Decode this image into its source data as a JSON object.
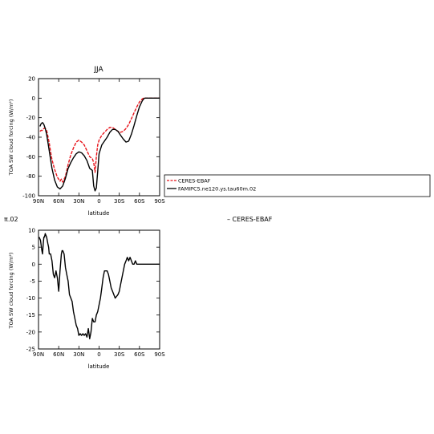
{
  "chart_data": [
    {
      "type": "line",
      "title": "JJA",
      "xlabel": "latitude",
      "ylabel": "TOA SW cloud forcing (W/m²)",
      "xticks": [
        "90N",
        "60N",
        "30N",
        "0",
        "30S",
        "60S",
        "90S"
      ],
      "xticks_values": [
        90,
        60,
        30,
        0,
        -30,
        -60,
        -90
      ],
      "yticks": [
        "20",
        "0",
        "-20",
        "-40",
        "-60",
        "-80",
        "-100"
      ],
      "xlim": [
        90,
        -90
      ],
      "ylim": [
        -100,
        20
      ],
      "grid": false,
      "legend_position": "right",
      "series": [
        {
          "name": "CERES-EBAF",
          "color": "#e8141b",
          "style": "dashed",
          "x": [
            88,
            86,
            84,
            82,
            80,
            78,
            76,
            74,
            72,
            70,
            66,
            62,
            58,
            56,
            54,
            50,
            46,
            42,
            38,
            34,
            30,
            26,
            22,
            18,
            14,
            10,
            8,
            6,
            4,
            2,
            0,
            -4,
            -8,
            -12,
            -16,
            -20,
            -24,
            -28,
            -32,
            -36,
            -40,
            -44,
            -48,
            -52,
            -56,
            -60,
            -64,
            -66,
            -68,
            -70,
            -72,
            -76,
            -80,
            -84,
            -88,
            -90
          ],
          "y": [
            -34,
            -33,
            -33,
            -31,
            -31,
            -33,
            -39,
            -46,
            -55,
            -63,
            -73,
            -81,
            -85,
            -83,
            -86,
            -80,
            -68,
            -58,
            -51,
            -45,
            -43,
            -45,
            -48,
            -54,
            -60,
            -62,
            -66,
            -76,
            -60,
            -48,
            -43,
            -38,
            -35,
            -32,
            -30,
            -30,
            -32,
            -34,
            -35,
            -34,
            -31,
            -27,
            -21,
            -15,
            -9,
            -4,
            -1,
            0,
            0,
            0,
            0,
            0,
            0,
            0,
            0,
            0
          ]
        },
        {
          "name": "FAMIPC5.ne120.ys.tau60m.02",
          "color": "#000000",
          "style": "solid",
          "x": [
            88,
            86,
            84,
            82,
            80,
            78,
            76,
            74,
            72,
            70,
            66,
            62,
            58,
            54,
            50,
            46,
            42,
            38,
            34,
            30,
            26,
            22,
            18,
            14,
            10,
            8,
            6,
            4,
            2,
            0,
            -4,
            -8,
            -12,
            -16,
            -20,
            -24,
            -28,
            -32,
            -36,
            -40,
            -44,
            -48,
            -52,
            -56,
            -60,
            -64,
            -66,
            -68,
            -70,
            -72,
            -76,
            -80,
            -84,
            -88,
            -90
          ],
          "y": [
            -29,
            -26,
            -25,
            -27,
            -31,
            -37,
            -45,
            -54,
            -63,
            -72,
            -84,
            -91,
            -93,
            -90,
            -82,
            -72,
            -66,
            -61,
            -57,
            -55,
            -56,
            -59,
            -64,
            -72,
            -74,
            -90,
            -95,
            -92,
            -75,
            -57,
            -48,
            -44,
            -40,
            -35,
            -32,
            -32,
            -34,
            -38,
            -42,
            -45,
            -44,
            -37,
            -28,
            -18,
            -9,
            -3,
            -1,
            0,
            0,
            0,
            0,
            0,
            0,
            0,
            0
          ]
        }
      ]
    },
    {
      "type": "line",
      "title": "",
      "corner_label": "π.02",
      "top_right_label": "– CERES-EBAF",
      "xlabel": "latitude",
      "ylabel": "TOA SW cloud forcing (W/m²)",
      "xticks": [
        "90N",
        "60N",
        "30N",
        "0",
        "30S",
        "60S",
        "90S"
      ],
      "xticks_values": [
        90,
        60,
        30,
        0,
        -30,
        -60,
        -90
      ],
      "yticks": [
        "10",
        "5",
        "0",
        "-5",
        "-10",
        "-15",
        "-20",
        "-25"
      ],
      "xlim": [
        90,
        -90
      ],
      "ylim": [
        -25,
        10
      ],
      "grid": false,
      "series": [
        {
          "color": "#000000",
          "style": "solid",
          "x": [
            89,
            87,
            85,
            84,
            83,
            82,
            81,
            80,
            78,
            76,
            75,
            74,
            72,
            70,
            68,
            66,
            64,
            62,
            60,
            58,
            56,
            55,
            54,
            52,
            50,
            48,
            46,
            44,
            42,
            40,
            38,
            36,
            34,
            32,
            30,
            28,
            26,
            24,
            22,
            20,
            18,
            16,
            14,
            12,
            10,
            8,
            6,
            4,
            2,
            0,
            -2,
            -4,
            -6,
            -8,
            -10,
            -12,
            -14,
            -16,
            -18,
            -20,
            -24,
            -28,
            -30,
            -32,
            -34,
            -36,
            -38,
            -40,
            -42,
            -44,
            -46,
            -48,
            -50,
            -52,
            -54,
            -56,
            -58,
            -60,
            -62,
            -64,
            -66,
            -68,
            -70,
            -72,
            -74,
            -76,
            -78,
            -80,
            -84,
            -88,
            -90
          ],
          "y": [
            8,
            7,
            4,
            3,
            6,
            8,
            8,
            9,
            8,
            6,
            5,
            3,
            3,
            1,
            -3,
            -4,
            -2,
            -4,
            -8,
            -2,
            3,
            4,
            4,
            3,
            -1,
            -3,
            -5,
            -9,
            -10,
            -11,
            -14,
            -16,
            -18,
            -19,
            -21,
            -20.5,
            -21,
            -20.5,
            -21,
            -20.5,
            -21.5,
            -19,
            -22,
            -20,
            -16,
            -17,
            -17,
            -15,
            -14,
            -12,
            -10,
            -7,
            -4,
            -2,
            -2,
            -2,
            -3,
            -5,
            -7,
            -8,
            -10,
            -9,
            -8,
            -6,
            -4,
            -2,
            0,
            1,
            2,
            1,
            2,
            1,
            0,
            0,
            1,
            0,
            0,
            0,
            0,
            0,
            0,
            0,
            0,
            0,
            0,
            0,
            0,
            0,
            0,
            0,
            0
          ]
        }
      ]
    }
  ]
}
